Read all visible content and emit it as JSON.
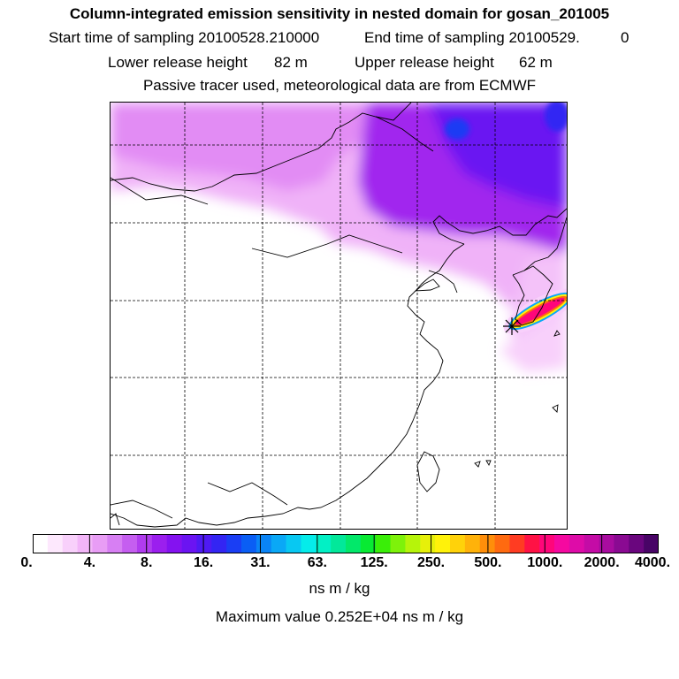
{
  "header": {
    "title": "Column-integrated emission sensitivity in nested domain for gosan_201005",
    "start_label": "Start time of sampling 20100528.210000",
    "end_label": "End time of sampling 20100529.",
    "end_suffix": "0",
    "lower_label": "Lower release height",
    "lower_value": "82 m",
    "upper_label": "Upper release height",
    "upper_value": "62 m",
    "subtitle": "Passive tracer used, meteorological data are from ECMWF"
  },
  "colorbar": {
    "ticks": [
      "0.",
      "4.",
      "8.",
      "16.",
      "31.",
      "63.",
      "125.",
      "250.",
      "500.",
      "1000.",
      "2000.",
      "4000."
    ],
    "colors": [
      "#ffffff",
      "#fde8fd",
      "#f8d0fb",
      "#f2b5f8",
      "#e89df5",
      "#d77ff3",
      "#c55ef0",
      "#b03cee",
      "#9b1fee",
      "#8412f0",
      "#6b14f2",
      "#4f1af3",
      "#3325f3",
      "#1a3ef4",
      "#0a5ef5",
      "#0a84f6",
      "#0aa8f6",
      "#08c8f2",
      "#05ecea",
      "#02f0c5",
      "#02e89a",
      "#02e86a",
      "#08ea33",
      "#3aee08",
      "#7ef20a",
      "#b6f40a",
      "#e6f00a",
      "#fff20a",
      "#ffd20a",
      "#ffb20a",
      "#ff8e0a",
      "#ff6a10",
      "#ff3c22",
      "#ff1245",
      "#ff067a",
      "#f509a0",
      "#de0ca8",
      "#c40ca6",
      "#a80c9f",
      "#8a0a92",
      "#6a067e",
      "#480466"
    ],
    "units": "ns m / kg",
    "max_label": "Maximum value  0.252E+04 ns m / kg"
  },
  "map": {
    "grid": {
      "lon": [
        105,
        115,
        125,
        135,
        145
      ],
      "lat": [
        55,
        45,
        35,
        25,
        15
      ]
    },
    "receptor": "gosan"
  }
}
